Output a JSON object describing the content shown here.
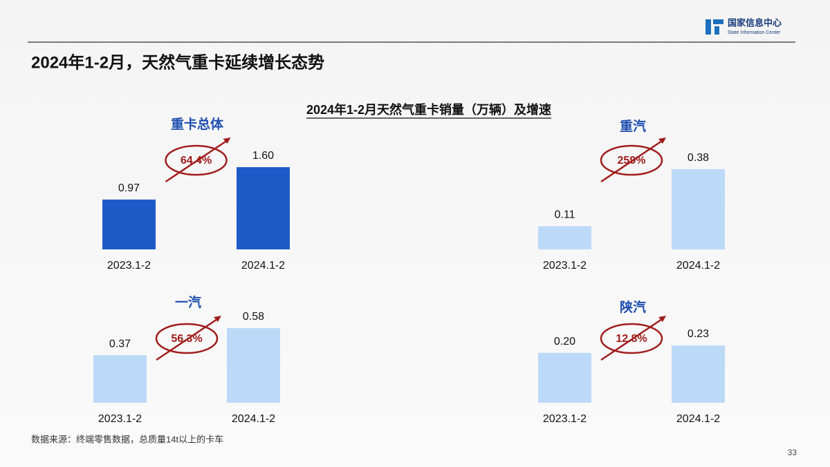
{
  "page": {
    "org_name": "国家信息中心",
    "org_name_en": "State Information Center",
    "headline": "2024年1-2月，天然气重卡延续增长态势",
    "chart_title": "2024年1-2月天然气重卡销量（万辆）及增速",
    "source": "数据来源：终端零售数据，总质量14t以上的卡车",
    "page_number": "33"
  },
  "chart_data": [
    {
      "type": "bar",
      "title": "重卡总体",
      "categories": [
        "2023.1-2",
        "2024.1-2"
      ],
      "values": [
        0.97,
        1.6
      ],
      "value_labels": [
        "0.97",
        "1.60"
      ],
      "color": "#1f5bc6",
      "annotation": "64.4%"
    },
    {
      "type": "bar",
      "title": "重汽",
      "categories": [
        "2023.1-2",
        "2024.1-2"
      ],
      "values": [
        0.11,
        0.38
      ],
      "value_labels": [
        "0.11",
        "0.38"
      ],
      "color": "#bdd9f8",
      "annotation": "259%"
    },
    {
      "type": "bar",
      "title": "一汽",
      "categories": [
        "2023.1-2",
        "2024.1-2"
      ],
      "values": [
        0.37,
        0.58
      ],
      "value_labels": [
        "0.37",
        "0.58"
      ],
      "color": "#bdd9f8",
      "annotation": "56.3%"
    },
    {
      "type": "bar",
      "title": "陕汽",
      "categories": [
        "2023.1-2",
        "2024.1-2"
      ],
      "values": [
        0.2,
        0.23
      ],
      "value_labels": [
        "0.20",
        "0.23"
      ],
      "color": "#bdd9f8",
      "annotation": "12.8%"
    }
  ]
}
